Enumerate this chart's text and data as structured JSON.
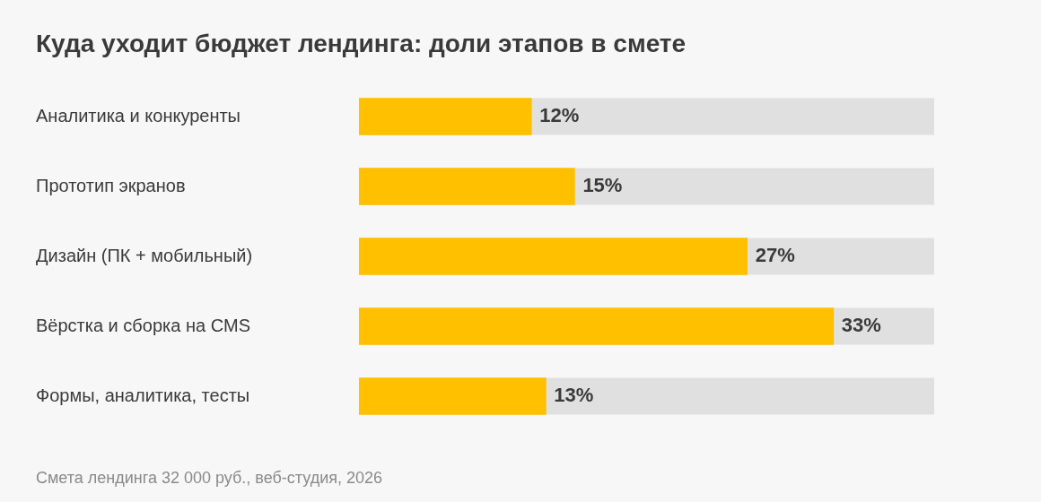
{
  "chart_data": {
    "type": "bar",
    "orientation": "horizontal",
    "title": "Куда уходит бюджет лендинга: доли этапов в смете",
    "categories": [
      "Аналитика и конкуренты",
      "Прототип экранов",
      "Дизайн (ПК + мобильный)",
      "Вёрстка и сборка на CMS",
      "Формы, аналитика, тесты"
    ],
    "values": [
      12,
      15,
      27,
      33,
      13
    ],
    "value_labels": [
      "12%",
      "15%",
      "27%",
      "33%",
      "13%"
    ],
    "color": "#ffc000",
    "xlim": [
      0,
      40
    ],
    "tick_labels": "y",
    "annotations": [
      "Смета лендинга 32 000 руб., веб-студия, 2026"
    ]
  }
}
